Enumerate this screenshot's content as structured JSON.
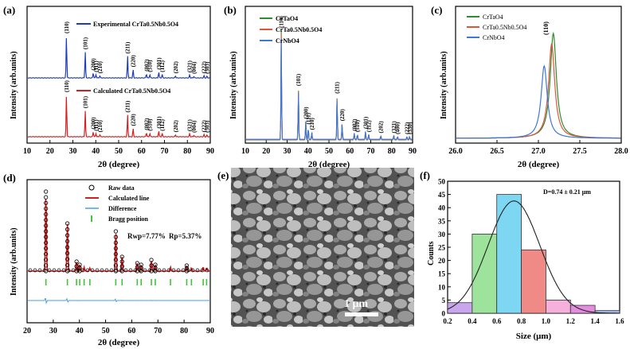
{
  "colors": {
    "exp": "#1f3cb8",
    "calc": "#d21f1f",
    "crta": "#2e8b2e",
    "crtanb": "#e0553a",
    "crnb": "#3b78d8",
    "bragg": "#44c23a",
    "diff": "#4a9fe0",
    "hist": [
      "#c9a6ee",
      "#9ee39b",
      "#7dd7f3",
      "#f08a86",
      "#f5b0dc",
      "#e48de0",
      "#9fb8ef"
    ]
  },
  "panels": {
    "a": {
      "label": "(a)",
      "ylabel": "Intensity (arb.units)",
      "xlabel": "2θ (degree)",
      "xticks": [
        "10",
        "20",
        "30",
        "40",
        "50",
        "60",
        "70",
        "80",
        "90"
      ],
      "legend_exp": "Experimental CrTa0.5Nb0.5O4",
      "legend_calc": "Calculated CrTa0.5Nb0.5O4"
    },
    "b": {
      "label": "(b)",
      "ylabel": "Intensity (arb.units)",
      "xlabel": "2θ (degree)",
      "xticks": [
        "10",
        "20",
        "30",
        "40",
        "50",
        "60",
        "70",
        "80",
        "90"
      ],
      "legend": [
        "CrTaO4",
        "CrTa0.5Nb0.5O4",
        "CrNbO4"
      ]
    },
    "c": {
      "label": "(c)",
      "ylabel": "Intensity (arb.units)",
      "xlabel": "2θ (degree)",
      "xticks": [
        "26.0",
        "26.5",
        "27.0",
        "27.5",
        "28.0"
      ],
      "legend": [
        "CrTaO4",
        "CrTa0.5Nb0.5O4",
        "CrNbO4"
      ],
      "peak_label": "(110)"
    },
    "d": {
      "label": "(d)",
      "ylabel": "Intensity (arb.units)",
      "xlabel": "2θ (degree)",
      "xticks": [
        "20",
        "30",
        "40",
        "50",
        "60",
        "70",
        "80",
        "90"
      ],
      "legend": [
        "Raw data",
        "Calculated line",
        "Difference",
        "Bragg position"
      ],
      "rwp": "Rwp=7.77%",
      "rp": "Rp=5.37%"
    },
    "e": {
      "label": "(e)",
      "scalebar": "1 μm"
    },
    "f": {
      "label": "(f)",
      "ylabel": "Counts",
      "xlabel": "Size (μm)",
      "xticks": [
        "0.2",
        "0.4",
        "0.6",
        "0.8",
        "1.0",
        "1.2",
        "1.4",
        "1.6"
      ],
      "yticks": [
        "0",
        "5",
        "10",
        "15",
        "20",
        "25",
        "30",
        "35",
        "40",
        "45",
        "50"
      ],
      "annotation": "D=0.74 ± 0.21 μm"
    }
  },
  "chart_data": [
    {
      "panel": "a",
      "type": "line",
      "xlim": [
        10,
        90
      ],
      "series": [
        {
          "name": "Experimental CrTa0.5Nb0.5O4"
        },
        {
          "name": "Calculated CrTa0.5Nb0.5O4"
        }
      ],
      "peaks": [
        {
          "x": 27.2,
          "label": "(110)",
          "h": 1.0
        },
        {
          "x": 35.4,
          "label": "(101)",
          "h": 0.62
        },
        {
          "x": 38.9,
          "label": "(200)",
          "h": 0.12
        },
        {
          "x": 40.1,
          "label": "(111)",
          "h": 0.08
        },
        {
          "x": 41.8,
          "label": "(210)",
          "h": 0.05
        },
        {
          "x": 53.9,
          "label": "(211)",
          "h": 0.52
        },
        {
          "x": 56.3,
          "label": "(220)",
          "h": 0.2
        },
        {
          "x": 62.1,
          "label": "(002)",
          "h": 0.1
        },
        {
          "x": 63.6,
          "label": "(310)",
          "h": 0.08
        },
        {
          "x": 67.5,
          "label": "(301)",
          "h": 0.14
        },
        {
          "x": 69.0,
          "label": "(112)",
          "h": 0.08
        },
        {
          "x": 74.8,
          "label": "(202)",
          "h": 0.05
        },
        {
          "x": 81.0,
          "label": "(321)",
          "h": 0.07
        },
        {
          "x": 82.8,
          "label": "(004)",
          "h": 0.04
        },
        {
          "x": 87.3,
          "label": "(222)",
          "h": 0.05
        },
        {
          "x": 88.6,
          "label": "(303)",
          "h": 0.04
        }
      ]
    },
    {
      "panel": "b",
      "type": "line",
      "xlim": [
        10,
        90
      ],
      "series": [
        {
          "name": "CrTaO4"
        },
        {
          "name": "CrTa0.5Nb0.5O4"
        },
        {
          "name": "CrNbO4"
        }
      ],
      "peaks": [
        {
          "x": 27.2,
          "label": "(110)",
          "h": 1.0
        },
        {
          "x": 35.4,
          "label": "(101)",
          "h": 0.47
        },
        {
          "x": 38.9,
          "label": "(200)",
          "h": 0.17
        },
        {
          "x": 40.1,
          "label": "(111)",
          "h": 0.12
        },
        {
          "x": 41.8,
          "label": "(210)",
          "h": 0.07
        },
        {
          "x": 53.9,
          "label": "(211)",
          "h": 0.4
        },
        {
          "x": 56.3,
          "label": "(220)",
          "h": 0.15
        },
        {
          "x": 62.1,
          "label": "(002)",
          "h": 0.06
        },
        {
          "x": 63.6,
          "label": "(310)",
          "h": 0.05
        },
        {
          "x": 67.5,
          "label": "(301)",
          "h": 0.08
        },
        {
          "x": 69.0,
          "label": "(112)",
          "h": 0.05
        },
        {
          "x": 74.8,
          "label": "(202)",
          "h": 0.04
        },
        {
          "x": 81.0,
          "label": "(321)",
          "h": 0.04
        },
        {
          "x": 82.8,
          "label": "(400)",
          "h": 0.03
        },
        {
          "x": 87.3,
          "label": "(222)",
          "h": 0.03
        },
        {
          "x": 88.6,
          "label": "(330)",
          "h": 0.03
        }
      ]
    },
    {
      "panel": "c",
      "type": "line",
      "xlim": [
        26.0,
        28.0
      ],
      "series": [
        {
          "name": "CrTaO4",
          "center": 27.18,
          "height": 1.0
        },
        {
          "name": "CrTa0.5Nb0.5O4",
          "center": 27.16,
          "height": 0.9
        },
        {
          "name": "CrNbO4",
          "center": 27.07,
          "height": 0.69
        }
      ]
    },
    {
      "panel": "d",
      "type": "line",
      "xlim": [
        20,
        90
      ],
      "series": [
        {
          "name": "Raw data"
        },
        {
          "name": "Calculated line"
        },
        {
          "name": "Difference"
        },
        {
          "name": "Bragg position"
        }
      ],
      "peaks": [
        27.2,
        35.4,
        38.9,
        40.1,
        41.8,
        44.0,
        53.9,
        56.3,
        62.1,
        63.6,
        67.5,
        69.0,
        74.8,
        81.0,
        82.8,
        87.3,
        88.6
      ],
      "heights": [
        1.0,
        0.6,
        0.12,
        0.08,
        0.05,
        0.04,
        0.5,
        0.18,
        0.1,
        0.08,
        0.14,
        0.08,
        0.05,
        0.07,
        0.04,
        0.05,
        0.04
      ]
    },
    {
      "panel": "f",
      "type": "bar",
      "xlim": [
        0.2,
        1.6
      ],
      "ylim": [
        0,
        50
      ],
      "bins": [
        [
          0.2,
          0.4
        ],
        [
          0.4,
          0.6
        ],
        [
          0.6,
          0.8
        ],
        [
          0.8,
          1.0
        ],
        [
          1.0,
          1.2
        ],
        [
          1.2,
          1.4
        ],
        [
          1.4,
          1.6
        ]
      ],
      "values": [
        4,
        30,
        45,
        24,
        5,
        3,
        1
      ],
      "fit": {
        "mean": 0.74,
        "sd": 0.21
      }
    }
  ]
}
